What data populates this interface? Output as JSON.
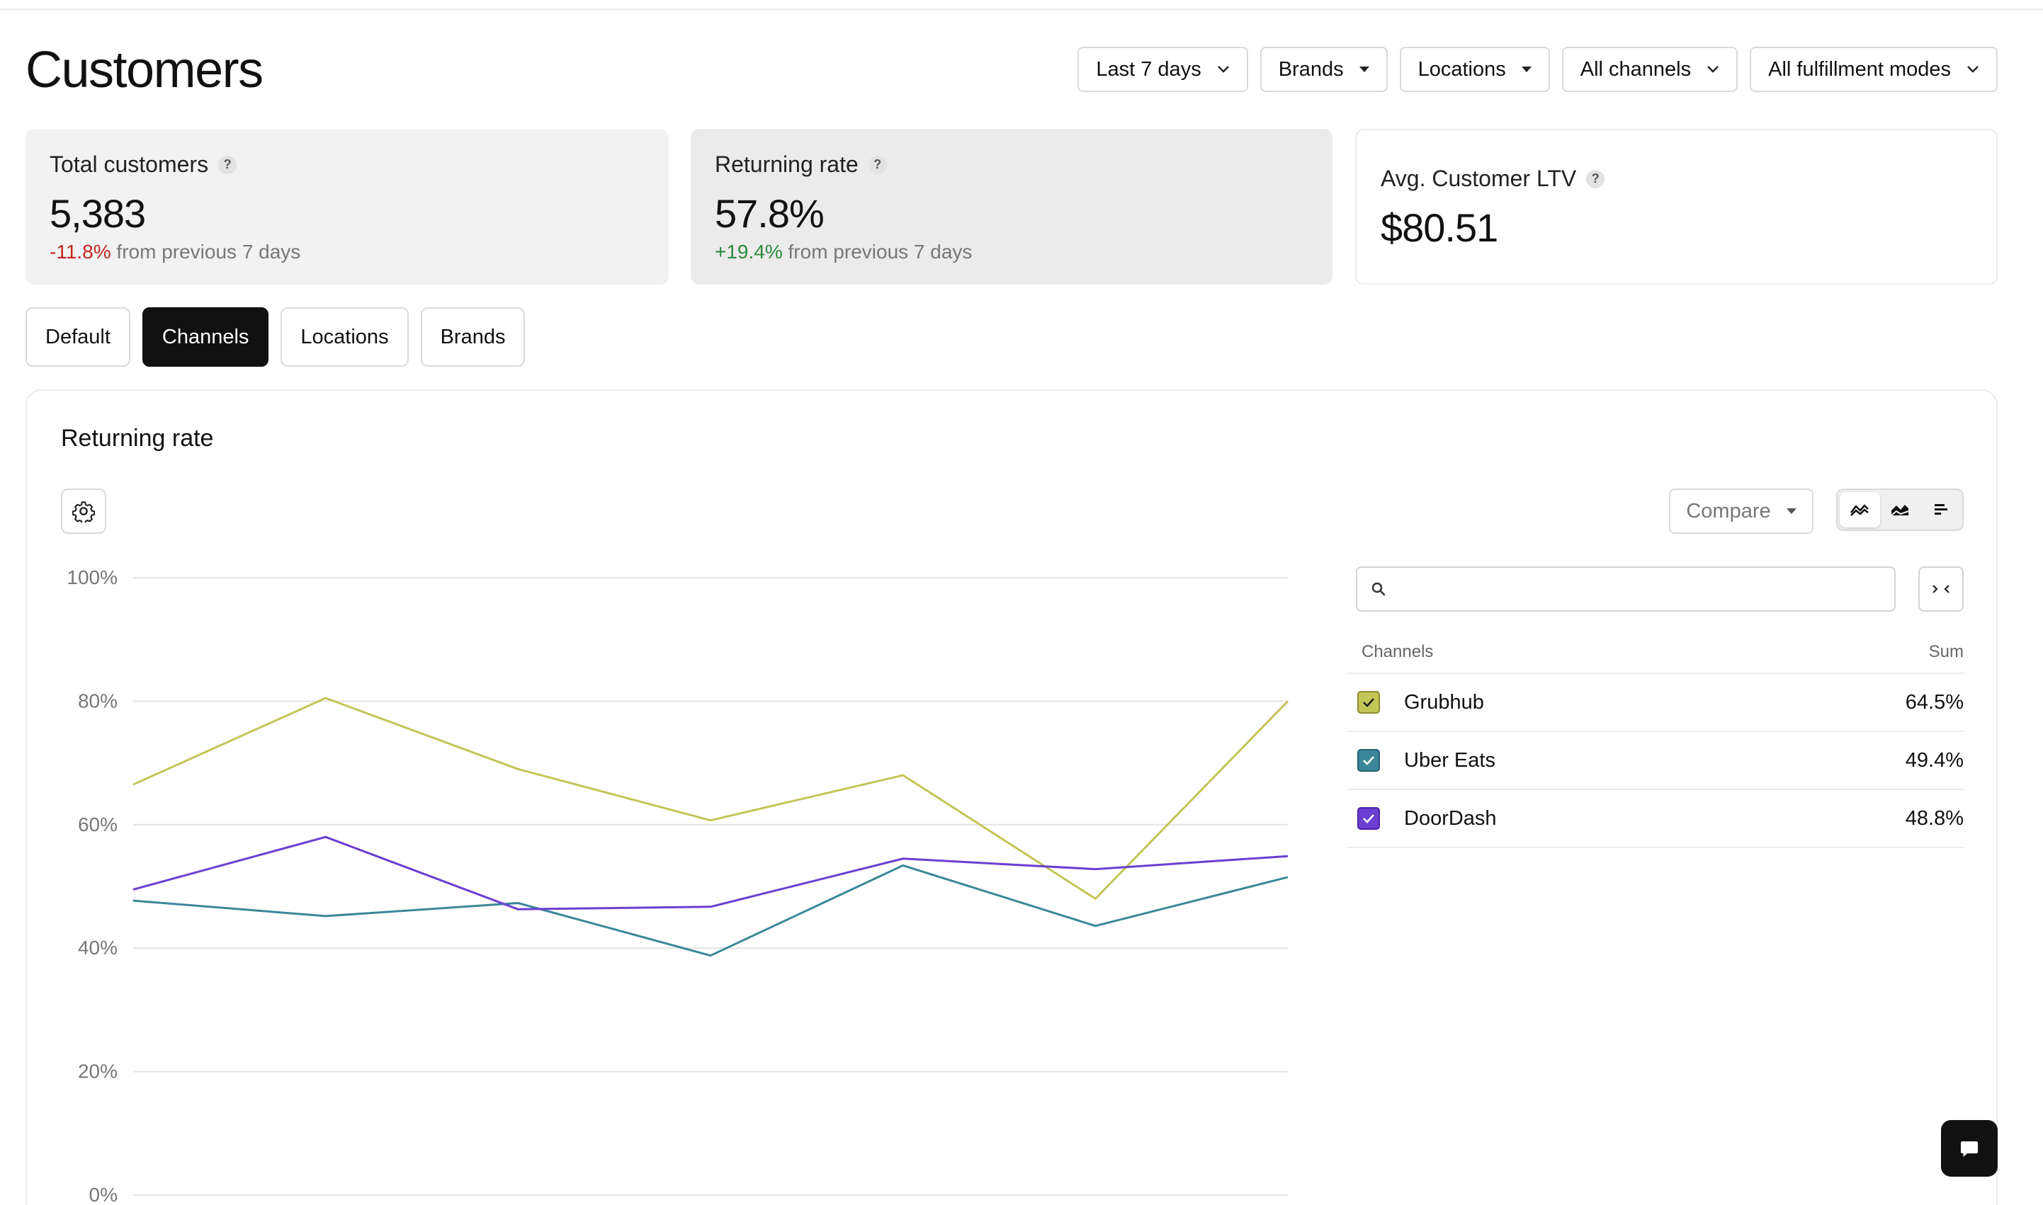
{
  "page": {
    "title": "Customers"
  },
  "filters": [
    {
      "label": "Last 7 days",
      "icon": "chevron-down-icon"
    },
    {
      "label": "Brands",
      "icon": "caret-down-icon"
    },
    {
      "label": "Locations",
      "icon": "caret-down-icon"
    },
    {
      "label": "All channels",
      "icon": "chevron-down-icon"
    },
    {
      "label": "All fulfillment modes",
      "icon": "chevron-down-icon"
    }
  ],
  "kpis": [
    {
      "title": "Total customers",
      "value": "5,383",
      "delta": "-11.8%",
      "delta_suffix": "from previous 7 days",
      "delta_color": "#c3261f"
    },
    {
      "title": "Returning rate",
      "value": "57.8%",
      "delta": "+19.4%",
      "delta_suffix": "from previous 7 days",
      "delta_color": "#2c8a3c"
    },
    {
      "title": "Avg. Customer LTV",
      "value": "$80.51"
    }
  ],
  "tabs": [
    {
      "label": "Default",
      "active": false
    },
    {
      "label": "Channels",
      "active": true
    },
    {
      "label": "Locations",
      "active": false
    },
    {
      "label": "Brands",
      "active": false
    }
  ],
  "panel": {
    "title": "Returning rate",
    "compare_label": "Compare",
    "search_placeholder": "",
    "legend_header": {
      "name_col": "Channels",
      "value_col": "Sum"
    },
    "legend": [
      {
        "name": "Grubhub",
        "value": "64.5%",
        "color": "#c3c557",
        "checked": true
      },
      {
        "name": "Uber Eats",
        "value": "49.4%",
        "color": "#3a8799",
        "checked": true
      },
      {
        "name": "DoorDash",
        "value": "48.8%",
        "color": "#6a3fd1",
        "checked": true
      }
    ]
  },
  "chart_data": {
    "type": "line",
    "title": "Returning rate",
    "ylim": [
      0,
      100
    ],
    "yticks": [
      "0%",
      "20%",
      "40%",
      "60%",
      "80%",
      "100%"
    ],
    "grid": true,
    "series": [
      {
        "name": "Grubhub",
        "color": "#c3c557",
        "values": [
          66.5,
          80.5,
          69,
          60.7,
          68,
          48,
          80
        ]
      },
      {
        "name": "Uber Eats",
        "color": "#3a8799",
        "values": [
          47.7,
          45.2,
          47.3,
          38.8,
          53.4,
          43.6,
          51.5
        ]
      },
      {
        "name": "DoorDash",
        "color": "#6a3fd1",
        "values": [
          49.5,
          58,
          46.3,
          46.7,
          54.5,
          52.8,
          54.9
        ]
      }
    ]
  }
}
